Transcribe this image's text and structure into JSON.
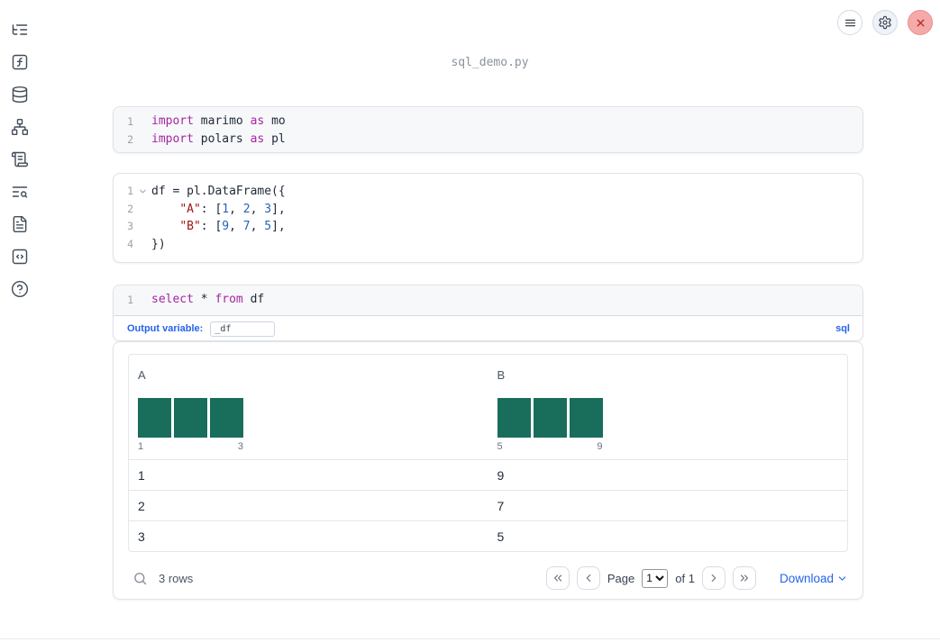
{
  "window": {
    "title": "sql_demo.py"
  },
  "topbar": {
    "buttons": [
      "menu",
      "settings",
      "close"
    ]
  },
  "sidebar": {
    "icons": [
      "list-tree",
      "function-square",
      "database",
      "network",
      "scroll-text",
      "text-search",
      "file-text",
      "code-square",
      "help-circle"
    ]
  },
  "colors": {
    "accent_blue": "#2563eb",
    "keyword": "#a626a4",
    "string": "#a31515",
    "number": "#2563b8",
    "histogram_bar": "#186e5a",
    "close_button": "#f5a9a9"
  },
  "cells": [
    {
      "name": "imports",
      "lines": [
        {
          "num": "1",
          "tokens": [
            [
              "kw",
              "import"
            ],
            [
              "pl",
              " marimo "
            ],
            [
              "kw",
              "as"
            ],
            [
              "pl",
              " mo"
            ]
          ]
        },
        {
          "num": "2",
          "tokens": [
            [
              "kw",
              "import"
            ],
            [
              "pl",
              " polars "
            ],
            [
              "kw",
              "as"
            ],
            [
              "pl",
              " pl"
            ]
          ]
        }
      ]
    },
    {
      "name": "dataframe",
      "lines": [
        {
          "num": "1",
          "fold": true,
          "tokens": [
            [
              "pl",
              "df = pl.DataFrame({"
            ]
          ]
        },
        {
          "num": "2",
          "tokens": [
            [
              "pl",
              "    "
            ],
            [
              "str",
              "\"A\""
            ],
            [
              "pl",
              ": ["
            ],
            [
              "num",
              "1"
            ],
            [
              "pl",
              ", "
            ],
            [
              "num",
              "2"
            ],
            [
              "pl",
              ", "
            ],
            [
              "num",
              "3"
            ],
            [
              "pl",
              "],"
            ]
          ]
        },
        {
          "num": "3",
          "tokens": [
            [
              "pl",
              "    "
            ],
            [
              "str",
              "\"B\""
            ],
            [
              "pl",
              ": ["
            ],
            [
              "num",
              "9"
            ],
            [
              "pl",
              ", "
            ],
            [
              "num",
              "7"
            ],
            [
              "pl",
              ", "
            ],
            [
              "num",
              "5"
            ],
            [
              "pl",
              "],"
            ]
          ]
        },
        {
          "num": "4",
          "tokens": [
            [
              "pl",
              "})"
            ]
          ]
        }
      ]
    },
    {
      "name": "sql",
      "lines": [
        {
          "num": "1",
          "tokens": [
            [
              "kw",
              "select"
            ],
            [
              "pl",
              " * "
            ],
            [
              "kw",
              "from"
            ],
            [
              "pl",
              " df"
            ]
          ]
        }
      ]
    }
  ],
  "sql_cell": {
    "output_variable_label": "Output variable:",
    "output_variable_value": "_df",
    "language_badge": "sql"
  },
  "chart_data": [
    {
      "type": "bar",
      "title": "A",
      "categories": [
        "1",
        "2",
        "3"
      ],
      "values": [
        1,
        1,
        1
      ],
      "x_axis_labels": [
        "1",
        "3"
      ],
      "bar_color": "#186e5a",
      "note": "histogram of column A, 3 equal-count bins"
    },
    {
      "type": "bar",
      "title": "B",
      "categories": [
        "5",
        "7",
        "9"
      ],
      "values": [
        1,
        1,
        1
      ],
      "x_axis_labels": [
        "5",
        "9"
      ],
      "bar_color": "#186e5a",
      "note": "histogram of column B, 3 equal-count bins"
    }
  ],
  "table": {
    "columns": [
      "A",
      "B"
    ],
    "rows": [
      [
        "1",
        "9"
      ],
      [
        "2",
        "7"
      ],
      [
        "3",
        "5"
      ]
    ],
    "footer": {
      "row_count": "3 rows",
      "page_label": "Page",
      "page_value": "1",
      "of_label": "of 1",
      "download_label": "Download"
    }
  }
}
